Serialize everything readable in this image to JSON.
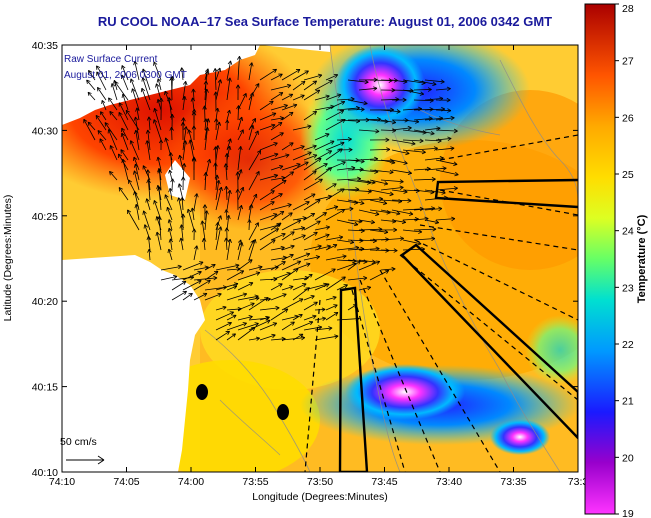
{
  "title": "RU COOL  NOAA–17  Sea Surface Temperature:  August 01, 2006 0342 GMT",
  "overlay": {
    "line1": "Raw Surface Current",
    "line2": "August 01, 2006 0300 GMT"
  },
  "scale_label": "50 cm/s",
  "axes": {
    "xlabel": "Longitude (Degrees:Minutes)",
    "ylabel": "Latitude (Degrees:Minutes)",
    "xticks": [
      "74:10",
      "74:05",
      "74:00",
      "73:55",
      "73:50",
      "73:45",
      "73:40",
      "73:35",
      "73:3"
    ],
    "yticks": [
      "40:35",
      "40:30",
      "40:25",
      "40:20",
      "40:15",
      "40:10"
    ]
  },
  "colorbar": {
    "label": "Temperature (°C)",
    "ticks": [
      "28",
      "27",
      "26",
      "25",
      "24",
      "23",
      "22",
      "21",
      "20",
      "19"
    ],
    "min": 19,
    "max": 28
  }
}
